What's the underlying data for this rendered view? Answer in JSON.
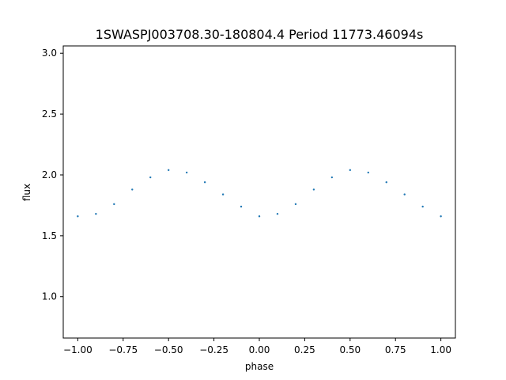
{
  "chart_data": {
    "type": "scatter",
    "title": "1SWASPJ003708.30-180804.4 Period 11773.46094s",
    "xlabel": "phase",
    "ylabel": "flux",
    "xlim": [
      -1.08,
      1.08
    ],
    "ylim": [
      0.66,
      3.06
    ],
    "xticks": [
      -1.0,
      -0.75,
      -0.5,
      -0.25,
      0.0,
      0.25,
      0.5,
      0.75,
      1.0
    ],
    "xtick_labels": [
      "−1.00",
      "−0.75",
      "−0.50",
      "−0.25",
      "0.00",
      "0.25",
      "0.50",
      "0.75",
      "1.00"
    ],
    "yticks": [
      1.0,
      1.5,
      2.0,
      2.5,
      3.0
    ],
    "ytick_labels": [
      "1.0",
      "1.5",
      "2.0",
      "2.5",
      "3.0"
    ],
    "grid": false,
    "legend": "none",
    "marker_color": "#1f77b4",
    "series": [
      {
        "x": [
          -1.0,
          -0.9,
          -0.8,
          -0.7,
          -0.6,
          -0.5,
          -0.4,
          -0.3,
          -0.2,
          -0.1,
          0.0,
          0.1,
          0.2,
          0.3,
          0.4,
          0.5,
          0.6,
          0.7,
          0.8,
          0.9,
          1.0
        ],
        "y": [
          1.66,
          1.68,
          1.76,
          1.88,
          1.98,
          2.04,
          2.02,
          1.94,
          1.84,
          1.74,
          1.66,
          1.68,
          1.76,
          1.88,
          1.98,
          2.04,
          2.02,
          1.94,
          1.84,
          1.74,
          1.66
        ]
      }
    ]
  }
}
